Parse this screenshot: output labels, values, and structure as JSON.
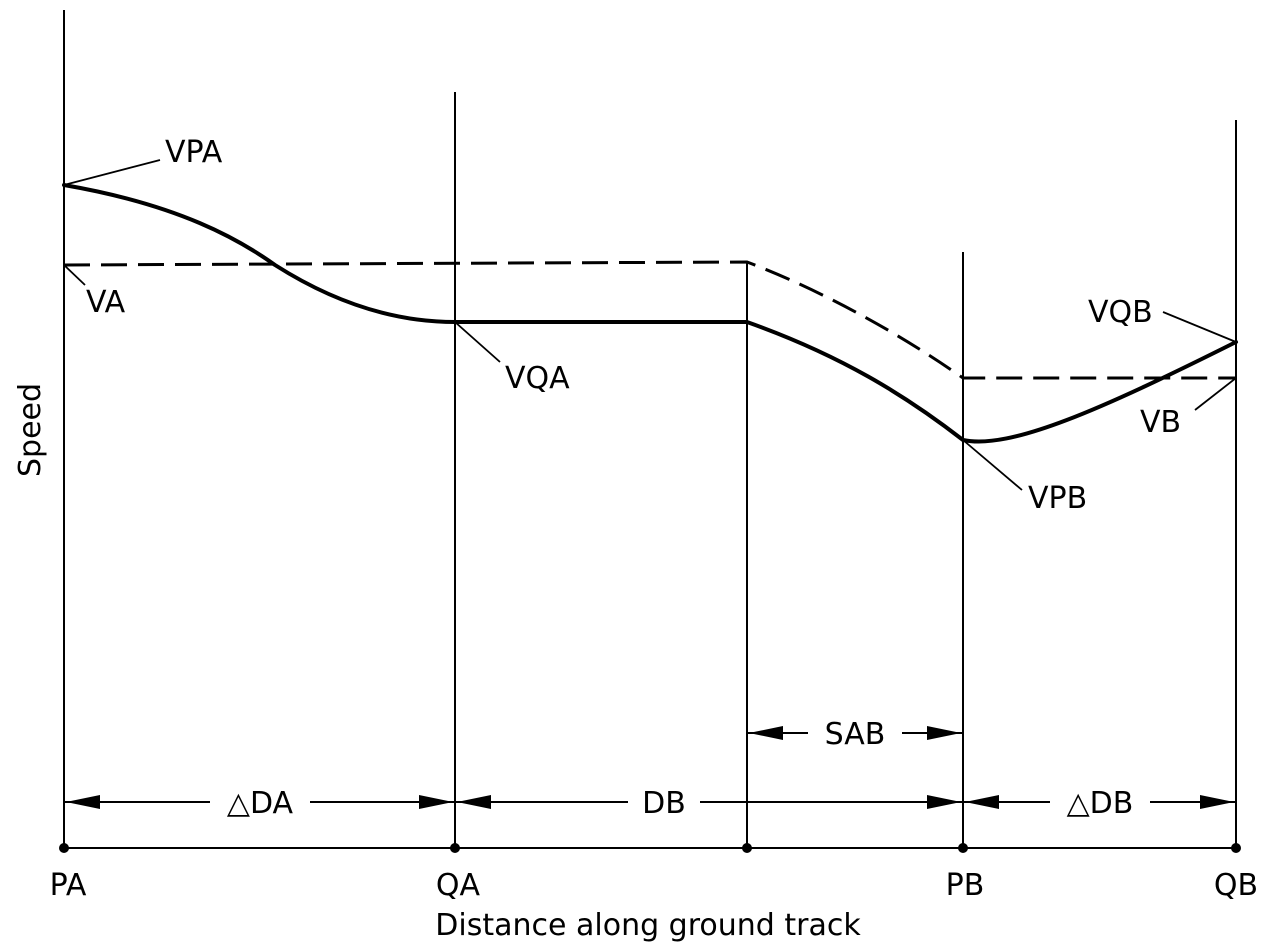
{
  "figure": {
    "y_axis_label": "Speed",
    "x_axis_label": "Distance along ground track",
    "stations": [
      "PA",
      "QA",
      "PB",
      "QB"
    ],
    "curve_labels": {
      "vpa": "VPA",
      "va": "VA",
      "vqa": "VQA",
      "vqb": "VQB",
      "vb": "VB",
      "vpb": "VPB"
    },
    "interval_labels": {
      "delta_da": "△DA",
      "db": "DB",
      "sab": "SAB",
      "delta_db": "△DB"
    }
  },
  "colors": {
    "ink": "#000000",
    "background": "#ffffff"
  }
}
